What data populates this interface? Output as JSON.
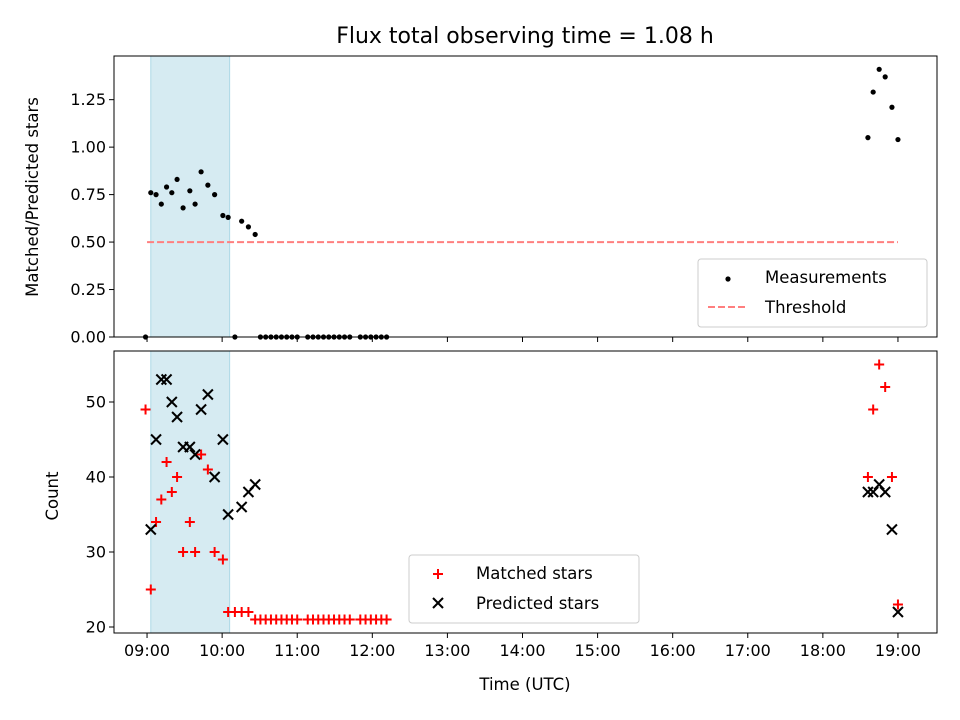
{
  "chart_data": [
    {
      "type": "scatter",
      "title": "Flux total observing time = 1.08 h",
      "xlabel": "",
      "ylabel": "Matched/Predicted stars",
      "xlim": [
        8.56,
        19.52
      ],
      "ylim": [
        0.0,
        1.48
      ],
      "yticks": [
        "0.00",
        "0.25",
        "0.50",
        "0.75",
        "1.00",
        "1.25"
      ],
      "highlight_span": [
        9.05,
        10.1
      ],
      "grid": false,
      "legend": "lower-right",
      "series": [
        {
          "name": "Measurements",
          "marker": "dot",
          "color": "#000000",
          "x": [
            8.98,
            9.05,
            9.12,
            9.19,
            9.26,
            9.33,
            9.4,
            9.48,
            9.57,
            9.64,
            9.72,
            9.81,
            9.9,
            10.01,
            10.08,
            10.17,
            10.26,
            10.35,
            10.44,
            10.51,
            10.58,
            10.65,
            10.72,
            10.79,
            10.86,
            10.93,
            11.0,
            11.14,
            11.21,
            11.28,
            11.35,
            11.42,
            11.49,
            11.56,
            11.63,
            11.7,
            11.84,
            11.91,
            11.98,
            12.05,
            12.12,
            12.19,
            18.6,
            18.67,
            18.75,
            18.83,
            18.92,
            19.0
          ],
          "y": [
            0.0,
            0.76,
            0.75,
            0.7,
            0.79,
            0.76,
            0.83,
            0.68,
            0.77,
            0.7,
            0.87,
            0.8,
            0.75,
            0.64,
            0.63,
            0.0,
            0.61,
            0.58,
            0.54,
            0.0,
            0.0,
            0.0,
            0.0,
            0.0,
            0.0,
            0.0,
            0.0,
            0.0,
            0.0,
            0.0,
            0.0,
            0.0,
            0.0,
            0.0,
            0.0,
            0.0,
            0.0,
            0.0,
            0.0,
            0.0,
            0.0,
            0.0,
            1.05,
            1.29,
            1.41,
            1.37,
            1.21,
            1.04
          ]
        },
        {
          "name": "Threshold",
          "style": "dashed-line",
          "color": "#ff7f7f",
          "x": [
            9.0,
            19.0
          ],
          "y": [
            0.5,
            0.5
          ]
        }
      ]
    },
    {
      "type": "scatter",
      "title": "",
      "xlabel": "Time (UTC)",
      "ylabel": "Count",
      "xlim": [
        8.56,
        19.52
      ],
      "ylim": [
        19.2,
        56.8
      ],
      "xticks": [
        "09:00",
        "10:00",
        "11:00",
        "12:00",
        "13:00",
        "14:00",
        "15:00",
        "16:00",
        "17:00",
        "18:00",
        "19:00"
      ],
      "yticks": [
        "20",
        "30",
        "40",
        "50"
      ],
      "highlight_span": [
        9.05,
        10.1
      ],
      "grid": false,
      "legend": "lower-center",
      "series": [
        {
          "name": "Matched stars",
          "marker": "plus",
          "color": "#ff0000",
          "x": [
            8.98,
            9.05,
            9.12,
            9.19,
            9.26,
            9.33,
            9.4,
            9.48,
            9.57,
            9.64,
            9.72,
            9.81,
            9.9,
            10.01,
            10.08,
            10.17,
            10.26,
            10.35,
            10.44,
            10.51,
            10.58,
            10.65,
            10.72,
            10.79,
            10.86,
            10.93,
            11.0,
            11.14,
            11.21,
            11.28,
            11.35,
            11.42,
            11.49,
            11.56,
            11.63,
            11.7,
            11.84,
            11.91,
            11.98,
            12.05,
            12.12,
            12.19,
            18.6,
            18.67,
            18.75,
            18.83,
            18.92,
            19.0
          ],
          "y": [
            49,
            25,
            34,
            37,
            42,
            38,
            40,
            30,
            34,
            30,
            43,
            41,
            30,
            29,
            22,
            22,
            22,
            22,
            21,
            21,
            21,
            21,
            21,
            21,
            21,
            21,
            21,
            21,
            21,
            21,
            21,
            21,
            21,
            21,
            21,
            21,
            21,
            21,
            21,
            21,
            21,
            21,
            40,
            49,
            55,
            52,
            40,
            23
          ]
        },
        {
          "name": "Predicted stars",
          "marker": "x",
          "color": "#000000",
          "x": [
            9.05,
            9.12,
            9.19,
            9.26,
            9.33,
            9.4,
            9.48,
            9.57,
            9.64,
            9.72,
            9.81,
            9.9,
            10.01,
            10.08,
            10.26,
            10.35,
            10.44,
            18.6,
            18.67,
            18.75,
            18.83,
            18.92,
            19.0
          ],
          "y": [
            33,
            45,
            53,
            53,
            50,
            48,
            44,
            44,
            43,
            49,
            51,
            40,
            45,
            35,
            36,
            38,
            39,
            38,
            38,
            39,
            38,
            33,
            22
          ]
        }
      ]
    }
  ]
}
